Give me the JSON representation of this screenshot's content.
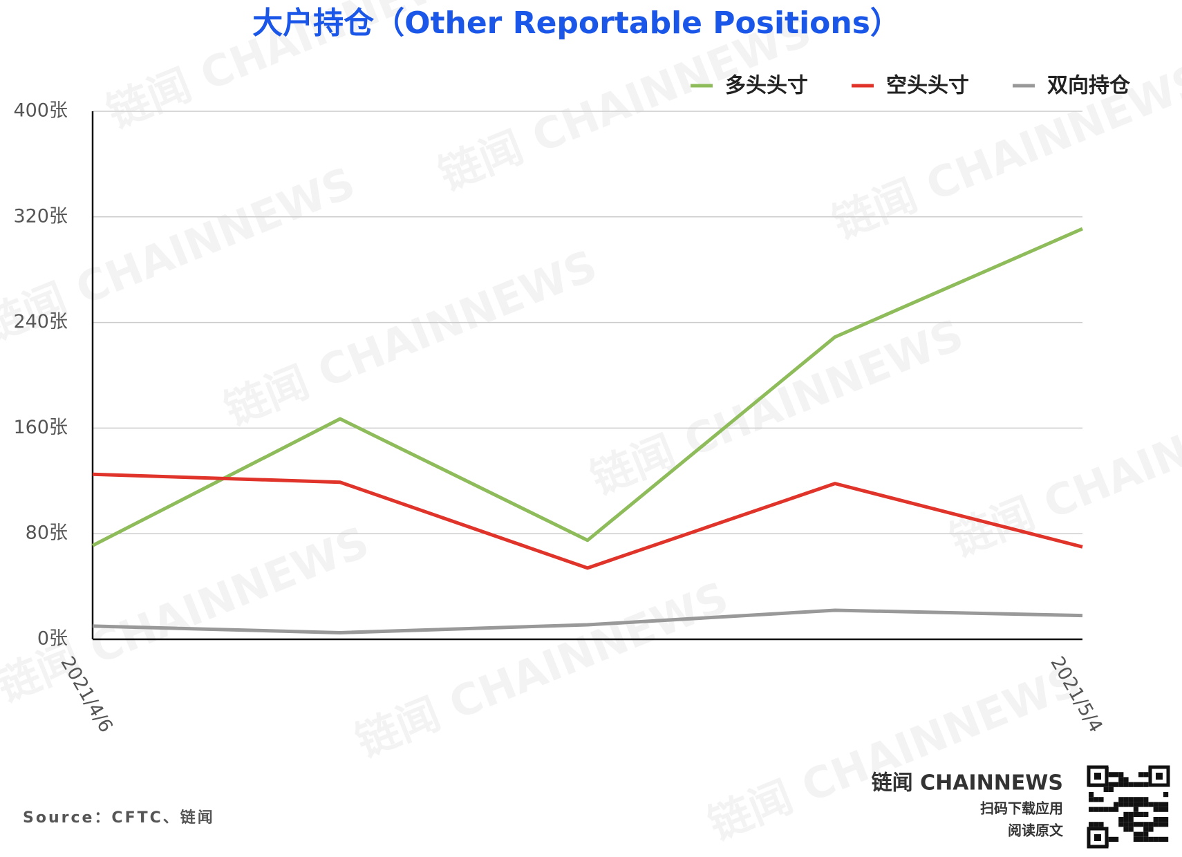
{
  "chart_data": {
    "type": "line",
    "title": "大户持仓（Other Reportable Positions）",
    "categories": [
      "2021/4/6",
      null,
      null,
      null,
      "2021/5/4"
    ],
    "series": [
      {
        "name": "多头头寸",
        "color": "#8fbc5a",
        "values": [
          71,
          167,
          75,
          229,
          311
        ]
      },
      {
        "name": "空头头寸",
        "color": "#e0342a",
        "values": [
          125,
          119,
          54,
          118,
          70
        ]
      },
      {
        "name": "双向持仓",
        "color": "#999999",
        "values": [
          10,
          5,
          11,
          22,
          18
        ]
      }
    ],
    "ylim": [
      0,
      400
    ],
    "yticks": [
      {
        "value": 0,
        "label": "0张"
      },
      {
        "value": 80,
        "label": "80张"
      },
      {
        "value": 160,
        "label": "160张"
      },
      {
        "value": 240,
        "label": "240张"
      },
      {
        "value": 320,
        "label": "320张"
      },
      {
        "value": 400,
        "label": "400张"
      }
    ],
    "grid": true,
    "legend": "top-right",
    "source": "Source：CFTC、链闻",
    "brand": "链闻 CHAINNEWS",
    "qr_caption": [
      "扫码下载应用",
      "阅读原文"
    ]
  }
}
